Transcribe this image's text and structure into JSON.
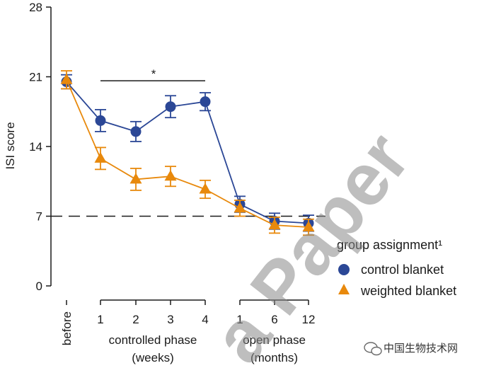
{
  "chart_data": {
    "type": "line",
    "ylabel": "ISI score",
    "ylim": [
      0,
      28
    ],
    "yticks": [
      "0",
      "7",
      "14",
      "21",
      "28"
    ],
    "reference_line": {
      "y": 7,
      "style": "dashed"
    },
    "x": [
      "before",
      "1",
      "2",
      "3",
      "4",
      "1",
      "6",
      "12"
    ],
    "phase_labels": [
      {
        "line1": "controlled phase",
        "line2": "(weeks)"
      },
      {
        "line1": "open phase",
        "line2": "(months)"
      }
    ],
    "significance": {
      "label": "*",
      "from_index": 1,
      "to_index": 4,
      "y": 20.6
    },
    "legend_title": "group assignment¹",
    "series": [
      {
        "name": "control blanket",
        "marker": "circle",
        "color": "#2b4796",
        "values": [
          20.5,
          16.6,
          15.5,
          18.0,
          18.5,
          8.2,
          6.5,
          6.3
        ],
        "errors": [
          0.7,
          1.1,
          1.0,
          1.1,
          0.9,
          0.8,
          0.8,
          0.8
        ]
      },
      {
        "name": "weighted blanket",
        "marker": "triangle",
        "color": "#e8890c",
        "values": [
          20.7,
          12.8,
          10.7,
          11.0,
          9.7,
          7.8,
          6.1,
          5.9
        ],
        "errors": [
          0.9,
          1.1,
          1.1,
          1.0,
          0.9,
          0.8,
          0.8,
          0.8
        ]
      }
    ],
    "grid": false,
    "legend_position": "bottom-right"
  },
  "watermark": {
    "diagonal_text": "a Paper",
    "corner_text": "中国生物技术网"
  }
}
